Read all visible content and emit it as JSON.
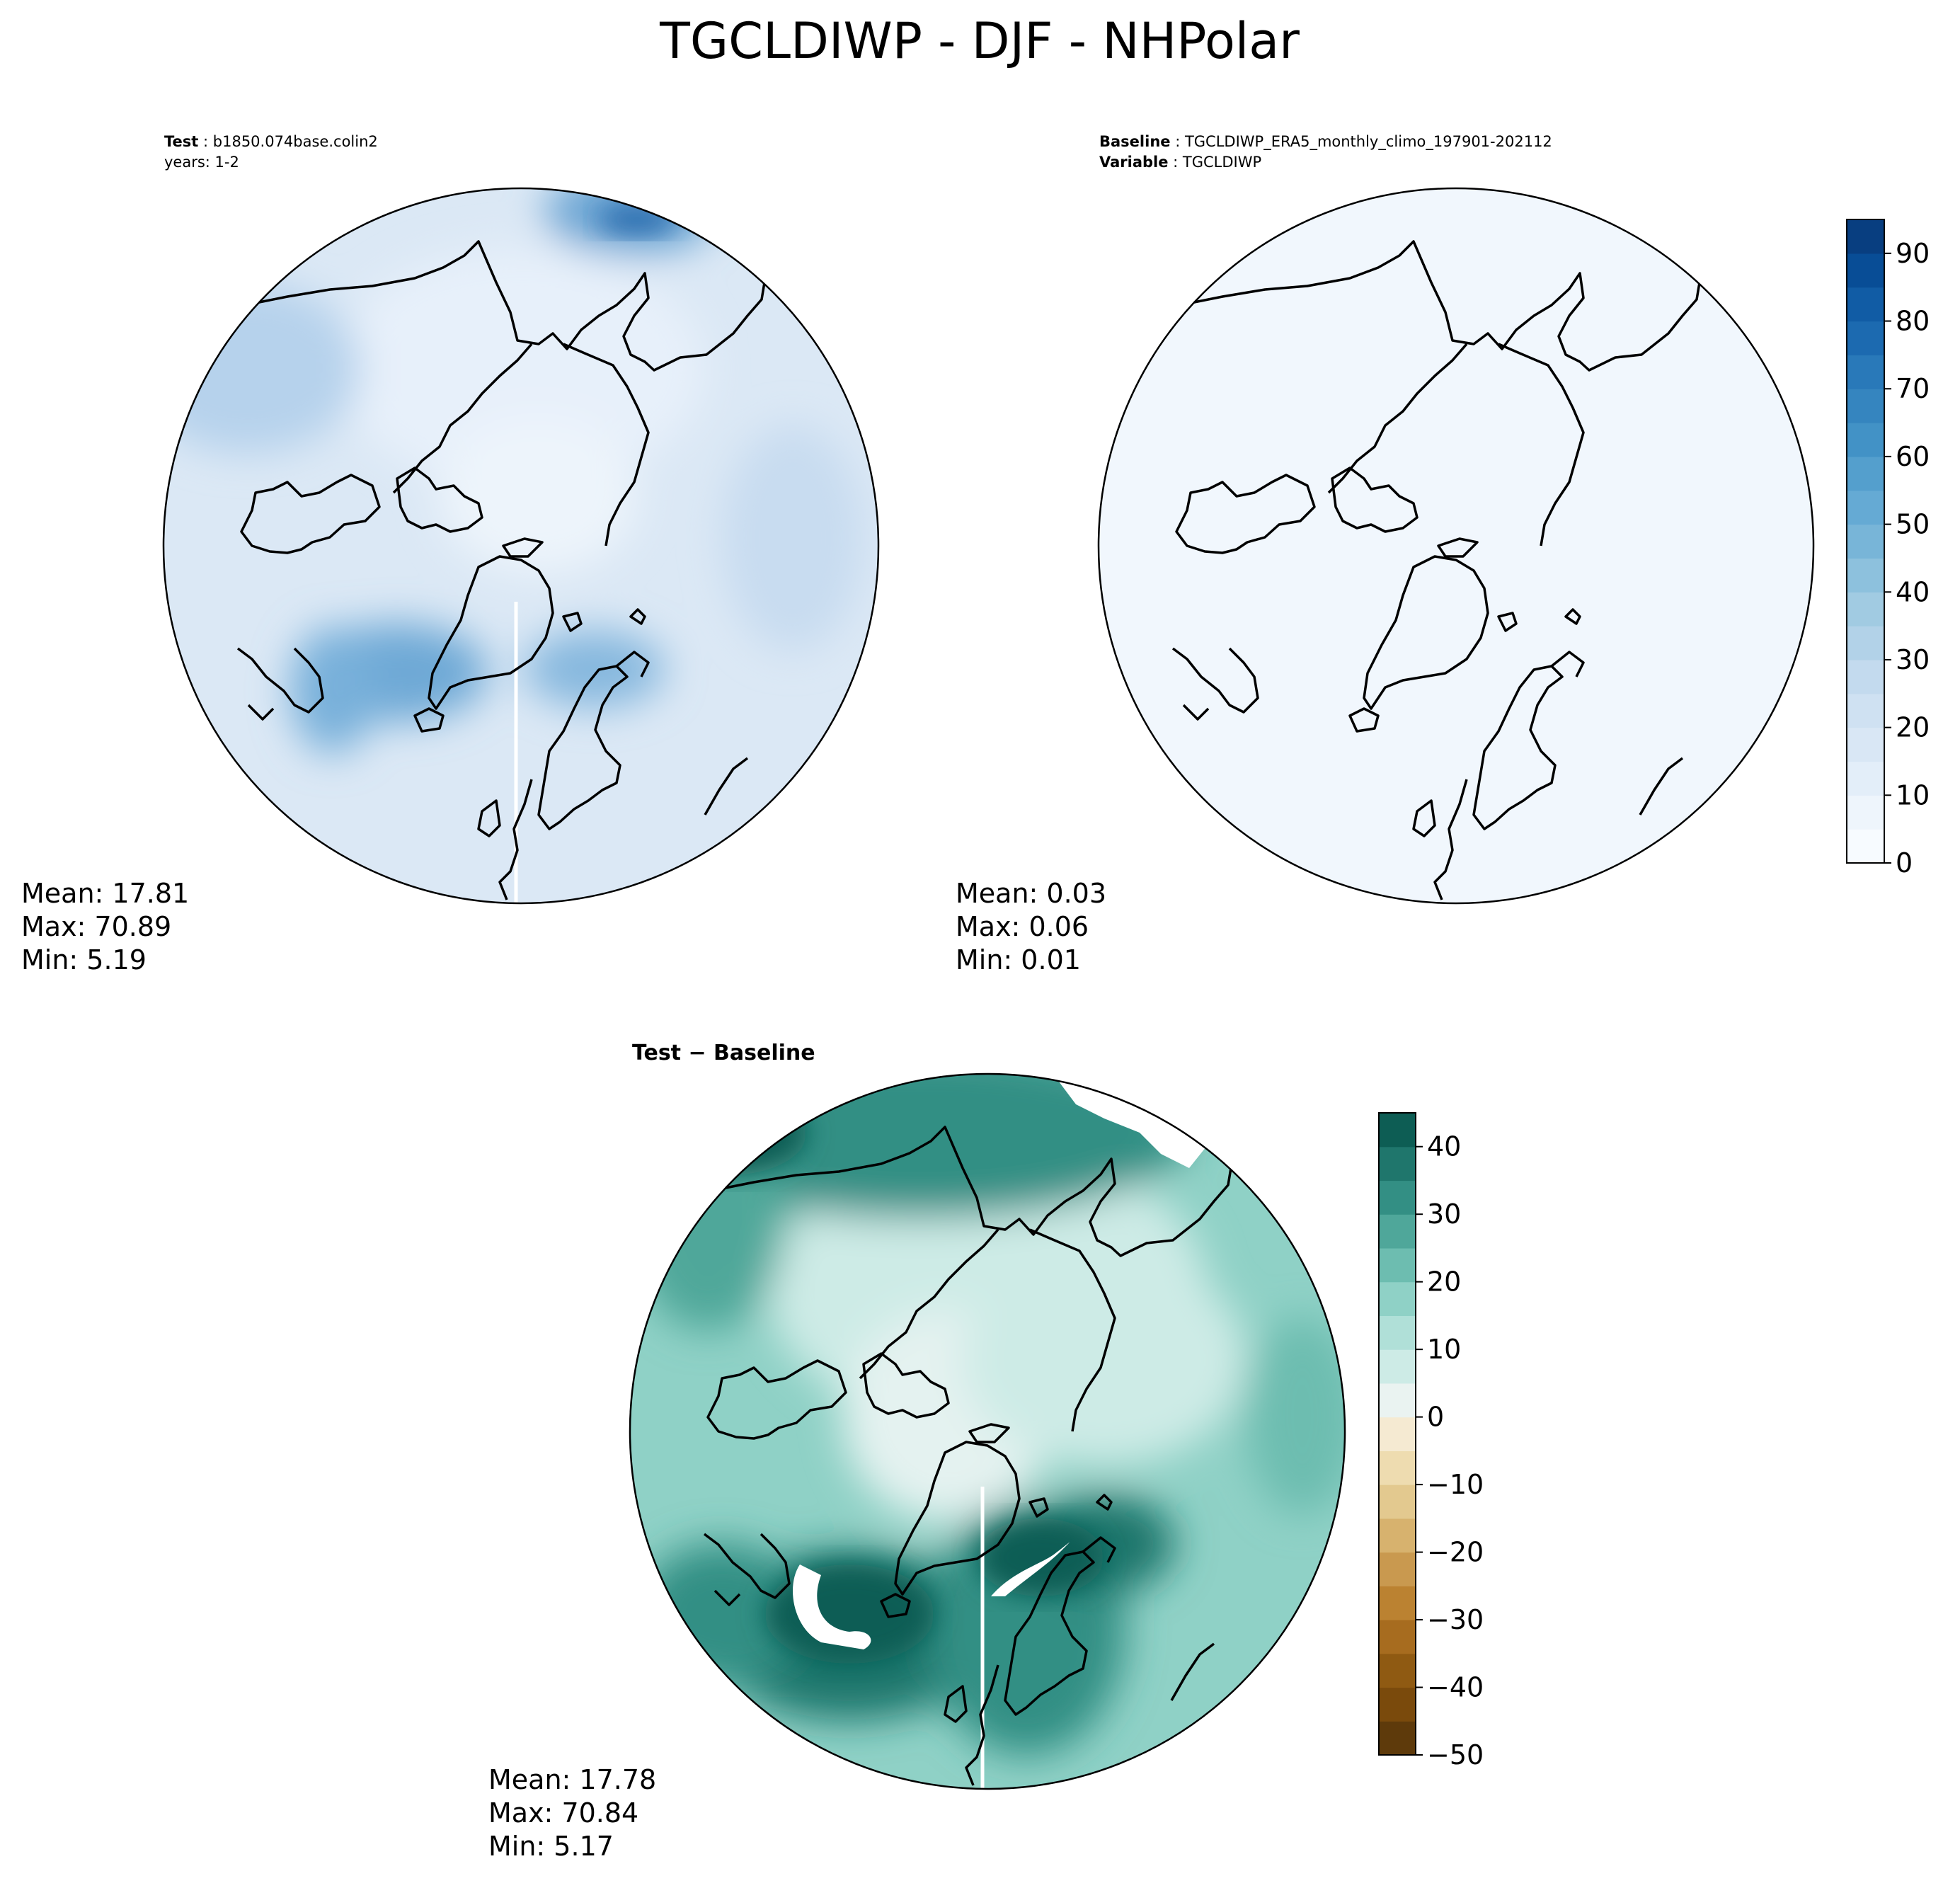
{
  "figure": {
    "title": "TGCLDIWP - DJF - NHPolar"
  },
  "panels": {
    "test": {
      "header_label_1": "Test",
      "header_value_1": "b1850.074base.colin2",
      "header_line_2": "years: 1-2",
      "stats": {
        "mean": "Mean: 17.81",
        "max": "Max: 70.89",
        "min": "Min:  5.19"
      }
    },
    "baseline": {
      "header_label_1": "Baseline",
      "header_value_1": "TGCLDIWP_ERA5_monthly_climo_197901-202112",
      "header_label_2": "Variable",
      "header_value_2": "TGCLDIWP",
      "stats": {
        "mean": "Mean:  0.03",
        "max": "Max:  0.06",
        "min": "Min:  0.01"
      }
    },
    "diff": {
      "title": "Test − Baseline",
      "stats": {
        "mean": "Mean: 17.78",
        "max": "Max: 70.84",
        "min": "Min:  5.17"
      }
    }
  },
  "chart_data": [
    {
      "type": "heatmap",
      "projection": "north-polar-stereographic",
      "panel": "test",
      "field": "TGCLDIWP",
      "mean": 17.81,
      "max": 70.89,
      "min": 5.19,
      "colormap": "Blues",
      "colorbar_shared_with": "baseline"
    },
    {
      "type": "heatmap",
      "projection": "north-polar-stereographic",
      "panel": "baseline",
      "field": "TGCLDIWP",
      "mean": 0.03,
      "max": 0.06,
      "min": 0.01,
      "colormap": "Blues",
      "colorbar": {
        "range": [
          0,
          95
        ],
        "levels": [
          0,
          5,
          10,
          15,
          20,
          25,
          30,
          35,
          40,
          45,
          50,
          55,
          60,
          65,
          70,
          75,
          80,
          85,
          90,
          95
        ],
        "ticks": [
          0,
          10,
          20,
          30,
          40,
          50,
          60,
          70,
          80,
          90
        ],
        "tick_labels": [
          "0",
          "10",
          "20",
          "30",
          "40",
          "50",
          "60",
          "70",
          "80",
          "90"
        ],
        "colors": [
          "#f7fbff",
          "#eef5fc",
          "#e3eef9",
          "#d9e7f5",
          "#cfe1f2",
          "#c3daee",
          "#b2d2e8",
          "#a1cbe2",
          "#8dc1dd",
          "#78b5d8",
          "#65aad4",
          "#549fcd",
          "#4292c6",
          "#3585bf",
          "#2979b9",
          "#1c6ab0",
          "#115ca5",
          "#084d96",
          "#083e80"
        ]
      }
    },
    {
      "type": "heatmap",
      "projection": "north-polar-stereographic",
      "panel": "diff",
      "field": "TGCLDIWP difference",
      "mean": 17.78,
      "max": 70.84,
      "min": 5.17,
      "colormap": "BrBG",
      "colorbar": {
        "range": [
          -50,
          45
        ],
        "levels": [
          -50,
          -45,
          -40,
          -35,
          -30,
          -25,
          -20,
          -15,
          -10,
          -5,
          0,
          5,
          10,
          15,
          20,
          25,
          30,
          35,
          40,
          45
        ],
        "ticks": [
          -50,
          -40,
          -30,
          -20,
          -10,
          0,
          10,
          20,
          30,
          40
        ],
        "tick_labels": [
          "−50",
          "−40",
          "−30",
          "−20",
          "−10",
          "0",
          "10",
          "20",
          "30",
          "40"
        ],
        "colors": [
          "#5e3a0b",
          "#7a4a0c",
          "#8f5a12",
          "#a76c1f",
          "#bb8231",
          "#c9994f",
          "#d7b26e",
          "#e3c98f",
          "#eedcb0",
          "#f5ead2",
          "#eaf3f1",
          "#cdebe6",
          "#b0e0d8",
          "#8fd1c6",
          "#6dbdb0",
          "#4fa79a",
          "#338f84",
          "#1f766c",
          "#0d5d54"
        ]
      }
    }
  ]
}
